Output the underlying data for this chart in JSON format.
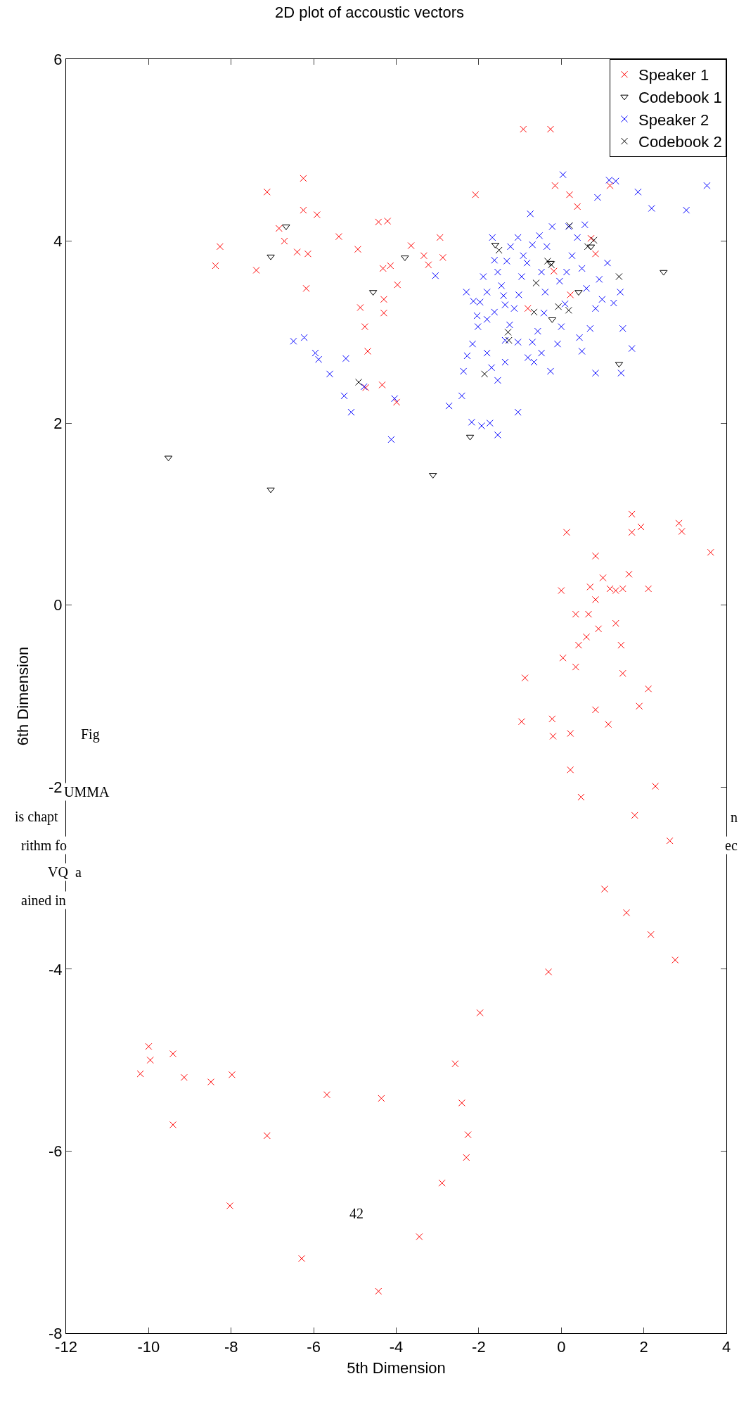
{
  "chart_data": {
    "type": "scatter",
    "title": "2D plot of accoustic vectors",
    "xlabel": "5th Dimension",
    "ylabel": "6th Dimension",
    "xlim": [
      -12,
      4
    ],
    "xticks": [
      -12,
      -10,
      -8,
      -6,
      -4,
      -2,
      0,
      2,
      4
    ],
    "ylim": [
      -8,
      6
    ],
    "yticks": [
      -8,
      -6,
      -4,
      -2,
      0,
      2,
      4,
      6
    ],
    "grid": false,
    "legend": "top right",
    "annotations": [
      "Fig",
      "UMMA",
      "is chapt",
      "rithm fo",
      "VQ  a",
      "ained in",
      "42",
      "n",
      "ec"
    ],
    "series": [
      {
        "name": "Speaker 1",
        "color": "#ff0000",
        "marker": "cross",
        "x": [
          -8.38,
          -8.27,
          -7.39,
          -7.13,
          -6.84,
          -6.71,
          -6.4,
          -6.25,
          -6.25,
          -6.18,
          -6.14,
          -5.92,
          -5.39,
          -4.93,
          -4.76,
          -4.69,
          -4.43,
          -4.21,
          -4.32,
          -4.14,
          -3.97,
          -3.99,
          -4.3,
          -4.3,
          -3.64,
          -3.33,
          -3.22,
          -2.94,
          -2.87,
          -2.08,
          -4.34,
          -4.74,
          -4.87,
          -0.18,
          -0.15,
          0.2,
          0.39,
          0.72,
          0.83,
          1.18,
          -0.92,
          -0.26,
          0.22,
          -0.81,
          0.13,
          3.62,
          1.71,
          1.93,
          2.85,
          2.92,
          1.71,
          0.83,
          0,
          0.7,
          1.01,
          1.18,
          1.32,
          1.49,
          1.64,
          2.11,
          0.35,
          0.66,
          0.83,
          1.32,
          0.9,
          0.61,
          0.42,
          0.04,
          1.45,
          0.35,
          -0.88,
          1.49,
          0.83,
          2.11,
          1.89,
          -0.96,
          -0.22,
          -0.2,
          0.22,
          1.14,
          0.22,
          0.48,
          2.28,
          1.78,
          2.63,
          1.05,
          1.58,
          2.17,
          2.76,
          -0.31,
          -1.97,
          -2.57,
          -2.41,
          -2.26,
          -2.3,
          -2.89,
          -3.44,
          -4.36,
          -5.68,
          -7.13,
          -7.98,
          -8.49,
          -9.14,
          -9.41,
          -9.41,
          -10.0,
          -9.96,
          -10.2,
          -8.03,
          -6.29,
          -4.43
        ],
        "values": [
          3.73,
          3.94,
          3.68,
          4.54,
          4.14,
          4.0,
          3.88,
          4.34,
          4.69,
          3.48,
          3.86,
          4.29,
          4.05,
          3.91,
          3.06,
          2.79,
          4.21,
          4.22,
          3.7,
          3.73,
          3.52,
          2.23,
          3.36,
          3.21,
          3.95,
          3.84,
          3.74,
          4.04,
          3.82,
          4.51,
          2.42,
          2.39,
          3.27,
          3.67,
          4.61,
          4.51,
          4.38,
          4.03,
          3.86,
          4.61,
          5.23,
          5.23,
          3.41,
          3.26,
          0.8,
          0.58,
          1.0,
          0.86,
          0.9,
          0.81,
          0.8,
          0.54,
          0.16,
          0.2,
          0.3,
          0.18,
          0.16,
          0.18,
          0.34,
          0.18,
          -0.1,
          -0.1,
          0.06,
          -0.2,
          -0.26,
          -0.35,
          -0.44,
          -0.58,
          -0.44,
          -0.68,
          -0.8,
          -0.75,
          -1.15,
          -0.92,
          -1.11,
          -1.28,
          -1.25,
          -1.44,
          -1.41,
          -1.31,
          -1.81,
          -2.11,
          -1.99,
          -2.31,
          -2.59,
          -3.12,
          -3.38,
          -3.62,
          -3.9,
          -4.03,
          -4.48,
          -5.04,
          -5.47,
          -5.82,
          -6.07,
          -6.35,
          -6.94,
          -5.42,
          -5.38,
          -5.83,
          -5.16,
          -5.24,
          -5.19,
          -4.93,
          -5.71,
          -4.85,
          -5.0,
          -5.15,
          -6.6,
          -7.18,
          -7.54
        ]
      },
      {
        "name": "Codebook 1",
        "color": "#000000",
        "marker": "triangle",
        "x": [
          -9.52,
          -7.04,
          -7.04,
          -6.67,
          -4.56,
          -3.79,
          -3.11,
          -2.21,
          -1.6,
          -0.26,
          -0.22,
          0.42,
          0.72,
          1.4,
          2.48
        ],
        "values": [
          1.62,
          3.83,
          1.27,
          4.16,
          3.44,
          3.82,
          1.43,
          1.85,
          3.96,
          3.76,
          3.14,
          3.44,
          3.94,
          2.65,
          3.66
        ]
      },
      {
        "name": "Speaker 2",
        "color": "#0000ff",
        "marker": "cross",
        "x": [
          -6.49,
          -6.23,
          -5.96,
          -5.88,
          -5.61,
          -5.22,
          -5.26,
          -5.09,
          -4.78,
          -4.12,
          -4.04,
          -3.05,
          -2.72,
          -2.41,
          -2.17,
          -1.93,
          -1.73,
          -1.54,
          -1.05,
          0.04,
          0.57,
          0.88,
          1.16,
          1.32,
          1.86,
          2.19,
          3.03,
          3.53,
          -2.3,
          -2.13,
          -1.97,
          -1.8,
          -1.67,
          -1.62,
          -1.54,
          -1.45,
          -1.4,
          -1.36,
          -1.62,
          -1.8,
          -2.02,
          -2.15,
          -2.28,
          -2.37,
          -1.8,
          -1.69,
          -1.54,
          -1.36,
          -1.25,
          -1.14,
          -1.03,
          -0.96,
          -0.83,
          -0.7,
          -0.75,
          -0.53,
          -0.48,
          -0.39,
          -0.42,
          -0.57,
          -0.7,
          -0.81,
          -0.48,
          -0.26,
          -0.09,
          0,
          0.09,
          -0.04,
          0.13,
          0.26,
          0.39,
          0.5,
          0.61,
          0.44,
          0.5,
          0.7,
          0.83,
          0.99,
          0.92,
          1.12,
          1.27,
          1.43,
          1.49,
          1.45,
          0.83,
          -1.05,
          -0.92,
          -1.32,
          -1.23,
          -1.36,
          -1.05,
          -0.66,
          0.18,
          -0.22,
          -0.35,
          1.71,
          -1.89,
          -2.04
        ],
        "values": [
          2.9,
          2.94,
          2.77,
          2.7,
          2.54,
          2.71,
          2.3,
          2.12,
          2.4,
          1.82,
          2.27,
          3.62,
          2.19,
          2.3,
          2.01,
          1.97,
          2.0,
          1.87,
          2.12,
          4.73,
          4.18,
          4.48,
          4.67,
          4.66,
          4.54,
          4.36,
          4.34,
          4.61,
          3.44,
          3.34,
          3.33,
          3.44,
          4.04,
          3.79,
          3.66,
          3.51,
          3.4,
          3.3,
          3.22,
          3.14,
          3.06,
          2.87,
          2.74,
          2.57,
          2.77,
          2.61,
          2.47,
          2.67,
          3.08,
          3.26,
          3.41,
          3.61,
          3.76,
          3.96,
          4.3,
          4.06,
          3.66,
          3.44,
          3.21,
          3.01,
          2.89,
          2.72,
          2.77,
          2.57,
          2.87,
          3.06,
          3.31,
          3.56,
          3.66,
          3.84,
          4.04,
          3.7,
          3.48,
          2.94,
          2.79,
          3.04,
          3.26,
          3.36,
          3.58,
          3.76,
          3.32,
          3.44,
          3.04,
          2.55,
          2.55,
          4.04,
          3.84,
          3.78,
          3.94,
          2.91,
          2.89,
          2.67,
          4.16,
          4.16,
          3.94,
          2.82,
          3.61,
          3.18
        ]
      },
      {
        "name": "Codebook 2",
        "color": "#000000",
        "marker": "cross",
        "x": [
          -4.91,
          -1.86,
          -1.51,
          -1.29,
          -1.27,
          -0.66,
          -0.61,
          -0.33,
          -0.24,
          -0.07,
          0.18,
          0.2,
          0.64,
          0.79,
          1.4
        ],
        "values": [
          2.45,
          2.54,
          3.9,
          3.0,
          2.91,
          3.22,
          3.54,
          3.78,
          3.74,
          3.28,
          3.24,
          4.17,
          3.94,
          4.01,
          3.61
        ]
      }
    ]
  }
}
